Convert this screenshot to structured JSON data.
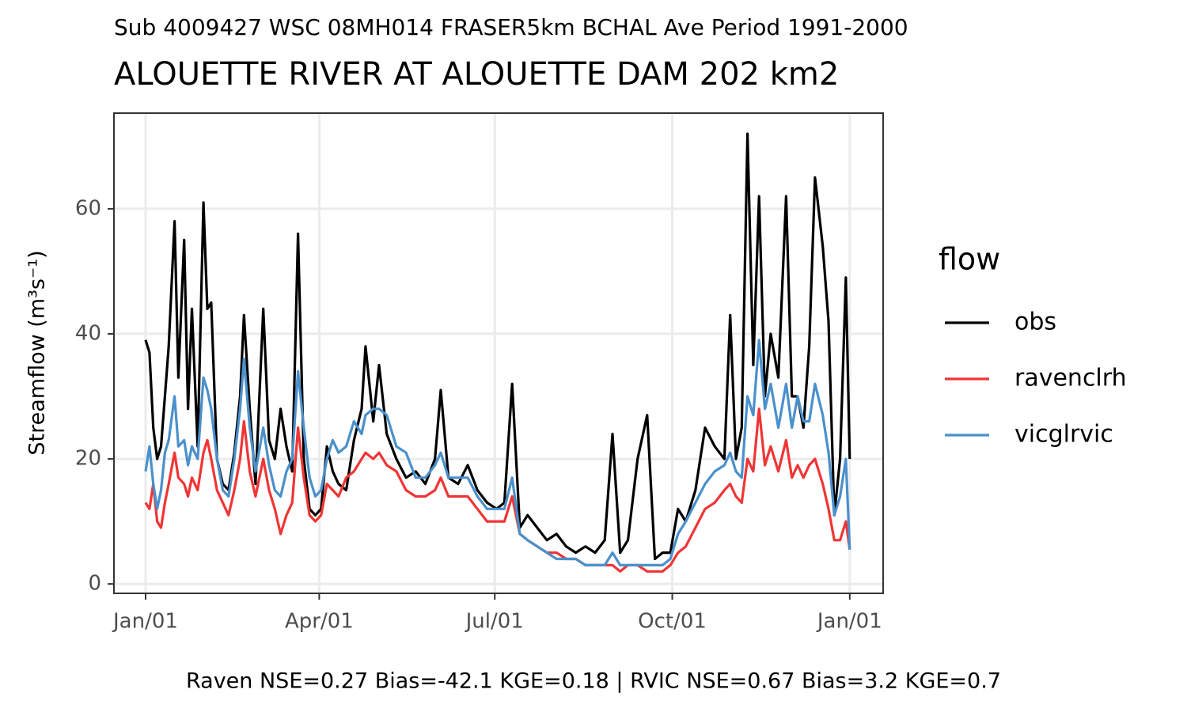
{
  "chart_data": {
    "type": "line",
    "subtitle": "Sub 4009427 WSC 08MH014 FRASER5km BCHAL Ave Period 1991-2000",
    "title": "ALOUETTE RIVER AT ALOUETTE DAM 202 km2",
    "y_label": "Streamflow (m³s⁻¹)",
    "caption": "Raven NSE=0.27 Bias=-42.1 KGE=0.18 | RVIC NSE=0.67 Bias=3.2 KGE=0.7",
    "legend_title": "flow",
    "legend": "right",
    "grid": true,
    "xlim": [
      -16.4,
      382.3
    ],
    "xticks": [
      {
        "value": 0,
        "label": "Jan/01"
      },
      {
        "value": 90,
        "label": "Apr/01"
      },
      {
        "value": 181,
        "label": "Jul/01"
      },
      {
        "value": 273,
        "label": "Oct/01"
      },
      {
        "value": 365,
        "label": "Jan/01"
      }
    ],
    "ylim": [
      -1.5,
      75.3
    ],
    "yticks": [
      0,
      20,
      40,
      60
    ],
    "x": [
      0,
      2,
      4,
      6,
      8,
      10,
      12,
      15,
      17,
      20,
      22,
      24,
      27,
      30,
      32,
      34,
      37,
      40,
      43,
      46,
      49,
      51,
      54,
      57,
      61,
      64,
      67,
      70,
      73,
      76,
      79,
      82,
      85,
      88,
      91,
      94,
      97,
      100,
      104,
      108,
      112,
      114,
      118,
      121,
      125,
      130,
      135,
      140,
      145,
      150,
      153,
      157,
      162,
      167,
      172,
      177,
      182,
      186,
      190,
      194,
      198,
      203,
      208,
      213,
      218,
      223,
      228,
      233,
      238,
      242,
      246,
      250,
      255,
      260,
      264,
      268,
      272,
      276,
      280,
      285,
      290,
      295,
      300,
      303,
      306,
      309,
      312,
      315,
      318,
      321,
      324,
      328,
      332,
      335,
      338,
      341,
      344,
      347,
      351,
      354,
      357,
      360,
      363,
      365
    ],
    "series": [
      {
        "name": "obs",
        "color": "#000000",
        "values": [
          39,
          37,
          25,
          20,
          22,
          30,
          38,
          58,
          33,
          55,
          28,
          44,
          22,
          61,
          44,
          45,
          20,
          16,
          15,
          21,
          30,
          43,
          28,
          16,
          44,
          23,
          20,
          28,
          22,
          18,
          56,
          20,
          12,
          11,
          12,
          22,
          18,
          16,
          15,
          23,
          28,
          38,
          26,
          35,
          24,
          20,
          17,
          18,
          16,
          20,
          31,
          17,
          16,
          19,
          15,
          13,
          12,
          13,
          32,
          9,
          11,
          9,
          7,
          8,
          6,
          5,
          6,
          5,
          7,
          24,
          5,
          7,
          20,
          27,
          4,
          5,
          5,
          12,
          10,
          15,
          25,
          22,
          20,
          43,
          20,
          25,
          72,
          35,
          62,
          30,
          40,
          33,
          62,
          30,
          30,
          25,
          38,
          65,
          54,
          42,
          11,
          20,
          49,
          20
        ]
      },
      {
        "name": "ravenclrh",
        "color": "#f03535",
        "values": [
          13,
          12,
          16,
          10,
          9,
          13,
          16,
          21,
          17,
          16,
          14,
          17,
          15,
          21,
          23,
          20,
          15,
          13,
          11,
          15,
          20,
          26,
          18,
          14,
          20,
          15,
          12,
          8,
          11,
          13,
          25,
          17,
          11,
          10,
          11,
          16,
          15,
          14,
          17,
          18,
          20,
          21,
          20,
          21,
          19,
          18,
          15,
          14,
          14,
          15,
          17,
          14,
          14,
          14,
          12,
          10,
          10,
          10,
          14,
          8,
          7,
          6,
          5,
          5,
          4,
          4,
          3,
          3,
          3,
          3,
          2,
          3,
          3,
          2,
          2,
          2,
          3,
          5,
          6,
          9,
          12,
          13,
          15,
          16,
          14,
          13,
          20,
          18,
          28,
          19,
          22,
          18,
          23,
          17,
          19,
          17,
          19,
          20,
          16,
          12,
          7,
          7,
          10,
          5.5
        ]
      },
      {
        "name": "vicglrvic",
        "color": "#4a90cc",
        "values": [
          18,
          22,
          16,
          12,
          15,
          21,
          23,
          30,
          22,
          23,
          19,
          22,
          20,
          33,
          31,
          28,
          20,
          15,
          14,
          20,
          28,
          36,
          25,
          18,
          25,
          19,
          15,
          14,
          18,
          20,
          34,
          25,
          17,
          14,
          15,
          20,
          23,
          21,
          22,
          26,
          24,
          27,
          28,
          28,
          27,
          22,
          21,
          17,
          17,
          19,
          21,
          17,
          17,
          17,
          14,
          12,
          12,
          12,
          17,
          8,
          7,
          6,
          5,
          4,
          4,
          4,
          3,
          3,
          3,
          5,
          3,
          3,
          3,
          3,
          3,
          3,
          4,
          8,
          10,
          13,
          16,
          18,
          19,
          21,
          18,
          17,
          30,
          27,
          39,
          28,
          32,
          25,
          32,
          25,
          30,
          26,
          26,
          32,
          27,
          21,
          11,
          14,
          20,
          5.5
        ]
      }
    ]
  }
}
